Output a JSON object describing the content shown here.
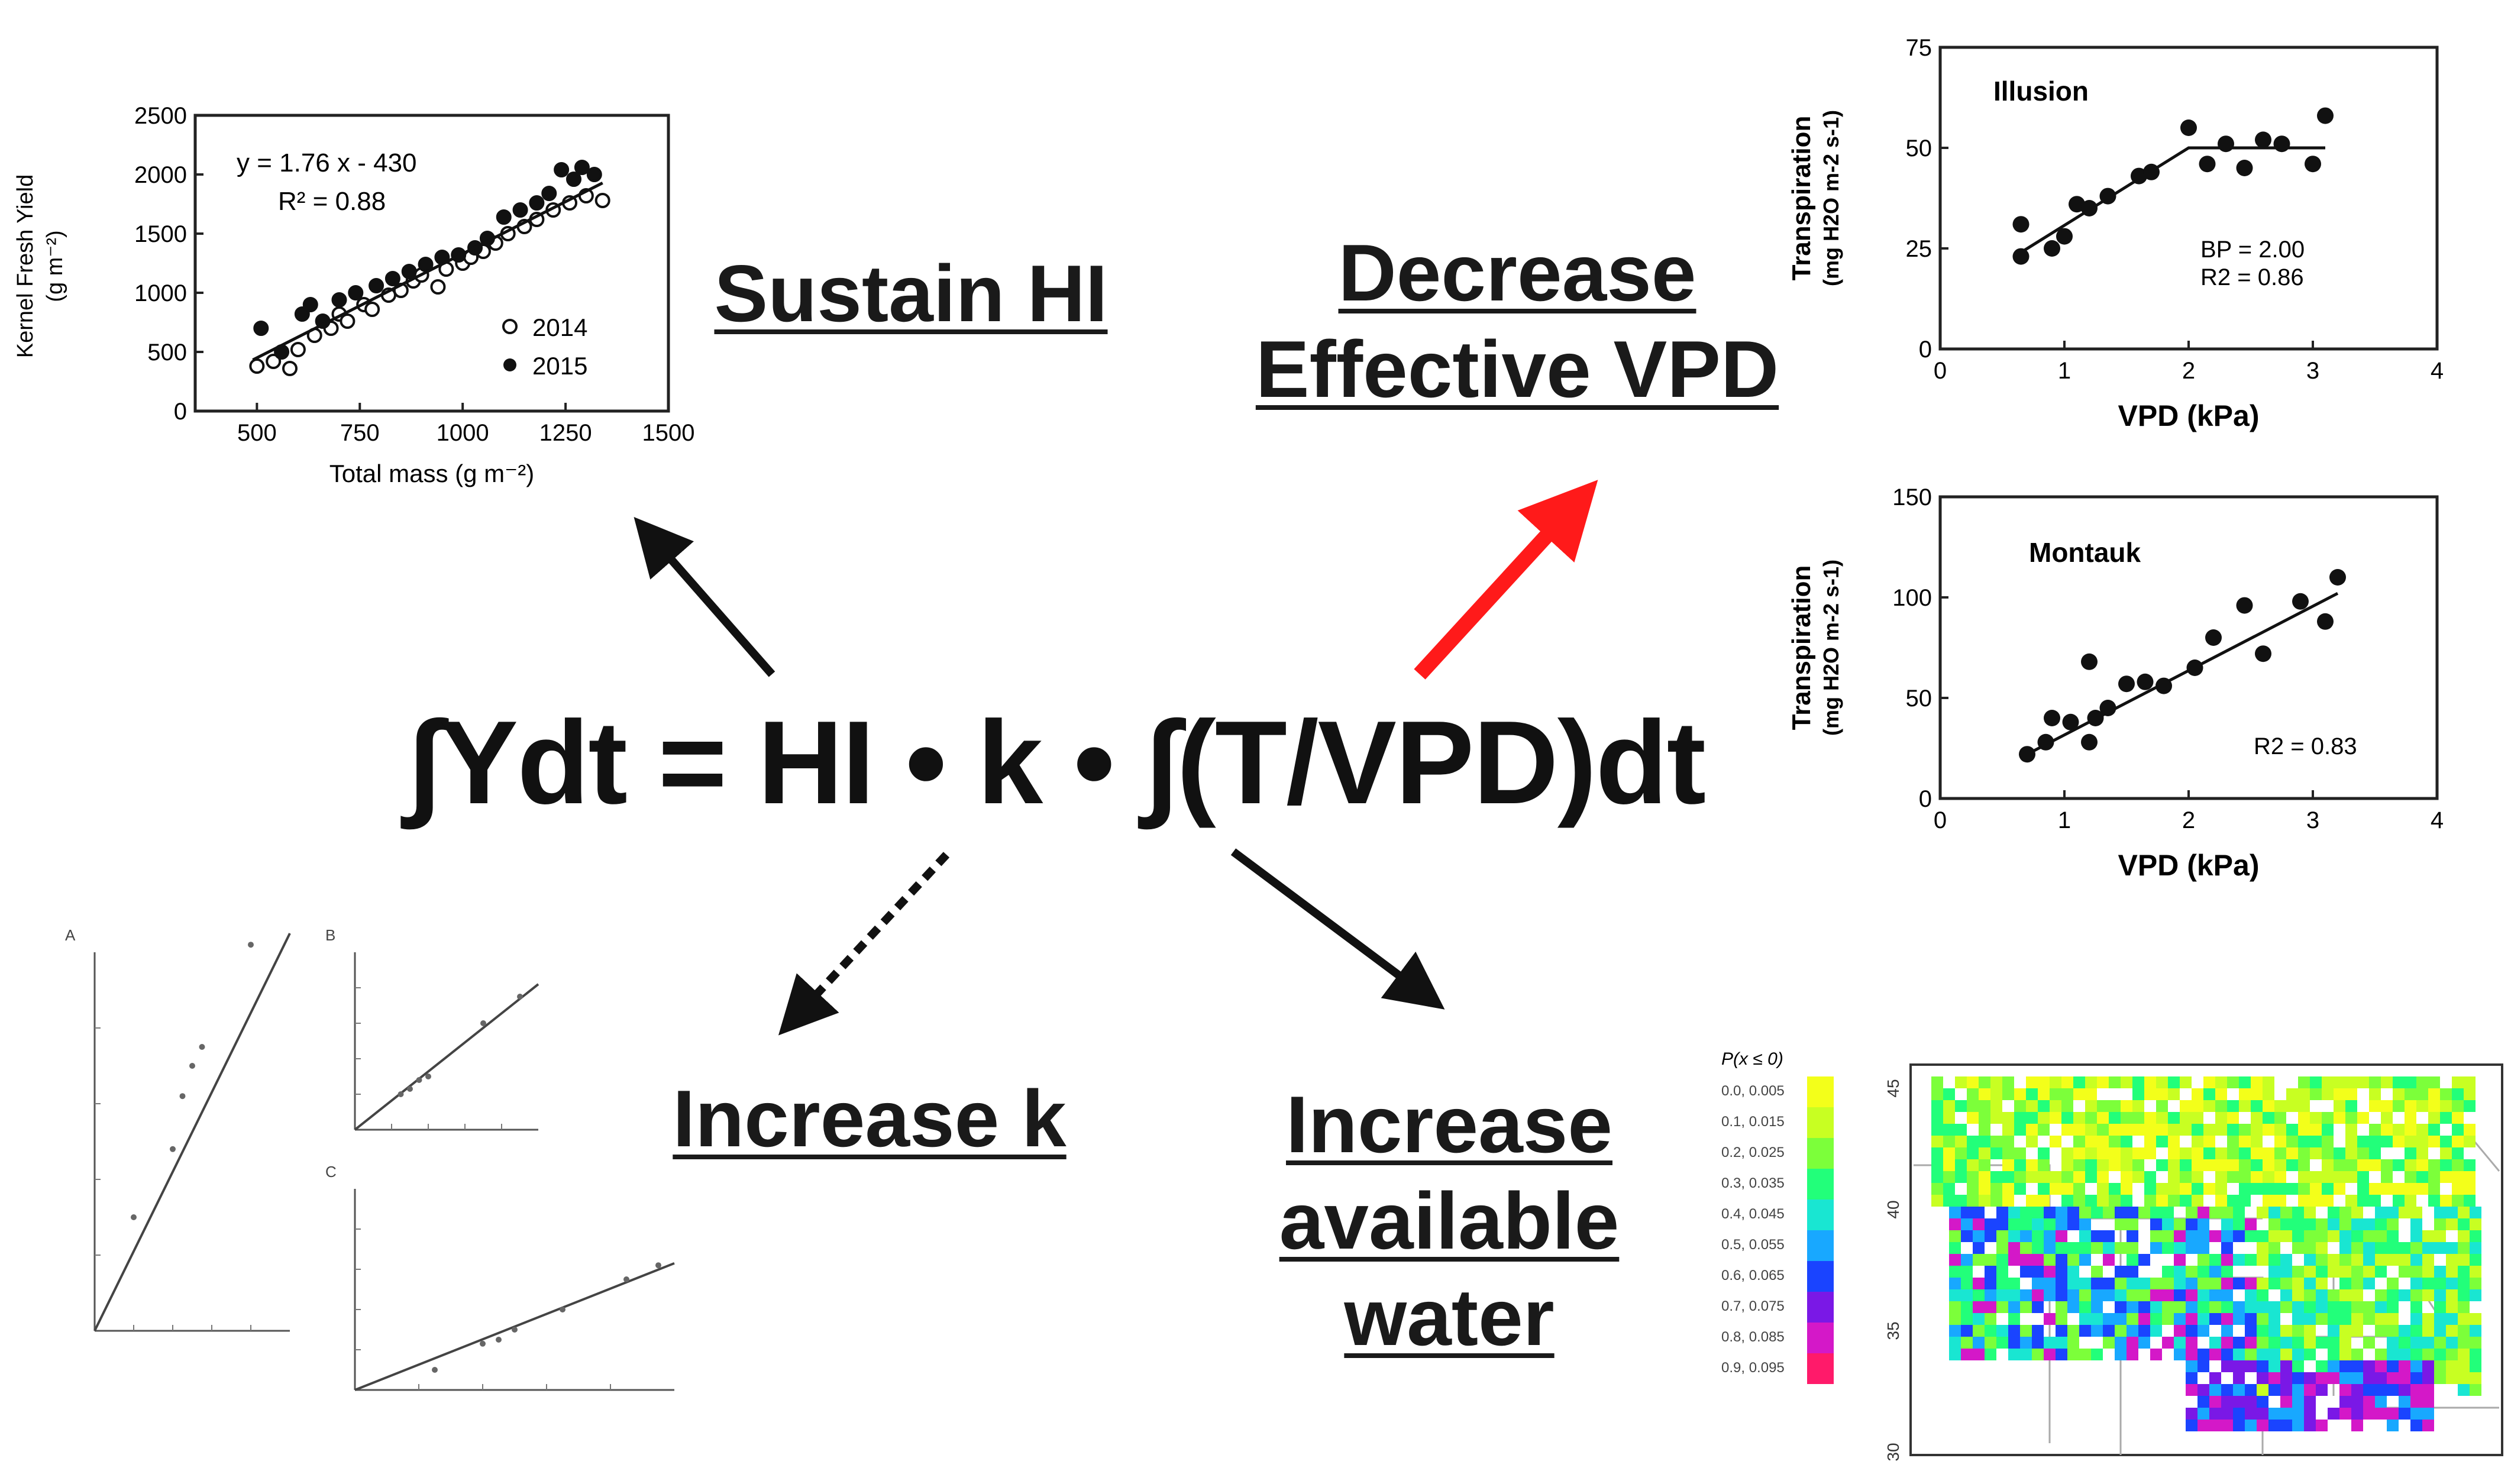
{
  "equation": "∫Ydt = HI • k • ∫(T/VPD)dt",
  "labels": {
    "sustain_hi": "Sustain HI",
    "decrease_vpd_line1": "Decrease",
    "decrease_vpd_line2": "Effective VPD",
    "increase_k": "Increase k",
    "increase_water_line1": "Increase",
    "increase_water_line2": "available",
    "increase_water_line3": "water"
  },
  "colors": {
    "arrow_black": "#111111",
    "arrow_red": "#ff1a1a"
  },
  "chart_data": [
    {
      "id": "kernel",
      "type": "scatter",
      "xlabel": "Total mass (g m⁻²)",
      "ylabel": "Kernel Fresh Yield",
      "ylabel_units": "(g m⁻²)",
      "xlim": [
        350,
        1500
      ],
      "ylim": [
        0,
        2500
      ],
      "xticks": [
        500,
        750,
        1000,
        1250,
        1500
      ],
      "yticks": [
        0,
        500,
        1000,
        1500,
        2000,
        2500
      ],
      "annotation_line1": "y = 1.76 x - 430",
      "annotation_line2": "R² = 0.88",
      "fit": {
        "slope": 1.76,
        "intercept": -430,
        "x_range": [
          490,
          1340
        ]
      },
      "legend": [
        "2014",
        "2015"
      ],
      "series": [
        {
          "name": "2014",
          "marker": "open",
          "points": [
            [
              500,
              380
            ],
            [
              540,
              420
            ],
            [
              580,
              360
            ],
            [
              600,
              520
            ],
            [
              640,
              640
            ],
            [
              680,
              700
            ],
            [
              700,
              820
            ],
            [
              720,
              760
            ],
            [
              760,
              900
            ],
            [
              780,
              860
            ],
            [
              820,
              980
            ],
            [
              850,
              1020
            ],
            [
              880,
              1100
            ],
            [
              900,
              1150
            ],
            [
              940,
              1050
            ],
            [
              960,
              1200
            ],
            [
              1000,
              1250
            ],
            [
              1020,
              1300
            ],
            [
              1050,
              1350
            ],
            [
              1080,
              1420
            ],
            [
              1110,
              1500
            ],
            [
              1150,
              1560
            ],
            [
              1180,
              1620
            ],
            [
              1220,
              1700
            ],
            [
              1260,
              1760
            ],
            [
              1300,
              1820
            ],
            [
              1340,
              1780
            ]
          ]
        },
        {
          "name": "2015",
          "marker": "filled",
          "points": [
            [
              510,
              700
            ],
            [
              560,
              500
            ],
            [
              610,
              820
            ],
            [
              630,
              900
            ],
            [
              660,
              760
            ],
            [
              700,
              940
            ],
            [
              740,
              1000
            ],
            [
              790,
              1060
            ],
            [
              830,
              1120
            ],
            [
              870,
              1180
            ],
            [
              910,
              1240
            ],
            [
              950,
              1300
            ],
            [
              990,
              1320
            ],
            [
              1030,
              1380
            ],
            [
              1060,
              1460
            ],
            [
              1100,
              1640
            ],
            [
              1140,
              1700
            ],
            [
              1180,
              1760
            ],
            [
              1210,
              1840
            ],
            [
              1240,
              2040
            ],
            [
              1270,
              1960
            ],
            [
              1290,
              2060
            ],
            [
              1320,
              2000
            ]
          ]
        }
      ]
    },
    {
      "id": "illusion",
      "type": "scatter",
      "title": "Illusion",
      "xlabel": "VPD (kPa)",
      "ylabel": "Transpiration",
      "ylabel_units": "(mg H2O m-2 s-1)",
      "xlim": [
        0,
        4
      ],
      "ylim": [
        0,
        75
      ],
      "xticks": [
        0,
        1,
        2,
        3,
        4
      ],
      "yticks": [
        0,
        25,
        50,
        75
      ],
      "annotation_line1": "BP = 2.00",
      "annotation_line2": "R2 = 0.86",
      "fit": [
        [
          0.65,
          24
        ],
        [
          2.0,
          50
        ],
        [
          3.1,
          50
        ]
      ],
      "points": [
        [
          0.65,
          31
        ],
        [
          0.65,
          23
        ],
        [
          0.9,
          25
        ],
        [
          1.0,
          28
        ],
        [
          1.1,
          36
        ],
        [
          1.2,
          35
        ],
        [
          1.35,
          38
        ],
        [
          1.6,
          43
        ],
        [
          1.7,
          44
        ],
        [
          2.0,
          55
        ],
        [
          2.15,
          46
        ],
        [
          2.3,
          51
        ],
        [
          2.45,
          45
        ],
        [
          2.6,
          52
        ],
        [
          2.75,
          51
        ],
        [
          3.0,
          46
        ],
        [
          3.1,
          58
        ]
      ]
    },
    {
      "id": "montauk",
      "type": "scatter",
      "title": "Montauk",
      "xlabel": "VPD (kPa)",
      "ylabel": "Transpiration",
      "ylabel_units": "(mg H2O m-2 s-1)",
      "xlim": [
        0,
        4
      ],
      "ylim": [
        0,
        150
      ],
      "xticks": [
        0,
        1,
        2,
        3,
        4
      ],
      "yticks": [
        0,
        50,
        100,
        150
      ],
      "annotation_line1": "R2 = 0.83",
      "fit": [
        [
          0.7,
          22
        ],
        [
          3.2,
          102
        ]
      ],
      "points": [
        [
          0.7,
          22
        ],
        [
          0.85,
          28
        ],
        [
          0.9,
          40
        ],
        [
          1.05,
          38
        ],
        [
          1.2,
          68
        ],
        [
          1.2,
          28
        ],
        [
          1.25,
          40
        ],
        [
          1.35,
          45
        ],
        [
          1.5,
          57
        ],
        [
          1.65,
          58
        ],
        [
          1.8,
          56
        ],
        [
          2.05,
          65
        ],
        [
          2.2,
          80
        ],
        [
          2.45,
          96
        ],
        [
          2.6,
          72
        ],
        [
          2.9,
          98
        ],
        [
          3.1,
          88
        ],
        [
          3.2,
          110
        ]
      ]
    },
    {
      "id": "kpanels",
      "type": "scatter",
      "panels": [
        {
          "label": "A",
          "points": [
            [
              0.2,
              0.3
            ],
            [
              0.4,
              0.48
            ],
            [
              0.45,
              0.62
            ],
            [
              0.5,
              0.7
            ],
            [
              0.55,
              0.75
            ],
            [
              0.8,
              1.02
            ]
          ],
          "fit": [
            [
              0,
              0
            ],
            [
              1,
              1.05
            ]
          ]
        },
        {
          "label": "B",
          "points": [
            [
              0.25,
              0.2
            ],
            [
              0.3,
              0.23
            ],
            [
              0.35,
              0.28
            ],
            [
              0.4,
              0.3
            ],
            [
              0.7,
              0.6
            ],
            [
              0.9,
              0.75
            ]
          ],
          "fit": [
            [
              0,
              0
            ],
            [
              1,
              0.82
            ]
          ]
        },
        {
          "label": "C",
          "points": [
            [
              0.25,
              0.1
            ],
            [
              0.4,
              0.23
            ],
            [
              0.45,
              0.25
            ],
            [
              0.5,
              0.3
            ],
            [
              0.65,
              0.4
            ],
            [
              0.85,
              0.55
            ],
            [
              0.95,
              0.62
            ]
          ],
          "fit": [
            [
              0,
              0
            ],
            [
              1,
              0.63
            ]
          ]
        }
      ]
    },
    {
      "id": "map",
      "type": "heatmap",
      "legend_title": "P(x ≤ 0)",
      "legend_entries": [
        "0.0, 0.005",
        "0.1, 0.015",
        "0.2, 0.025",
        "0.3, 0.035",
        "0.4, 0.045",
        "0.5, 0.055",
        "0.6, 0.065",
        "0.7, 0.075",
        "0.8, 0.085",
        "0.9, 0.095"
      ],
      "legend_colors": [
        "#f3ff1a",
        "#c8ff22",
        "#7cff3a",
        "#22ff7a",
        "#19e6d2",
        "#18a8ff",
        "#1a44ff",
        "#7a18e6",
        "#d418c8",
        "#ff1a6a"
      ],
      "y_ticks": [
        "45",
        "40",
        "35",
        "30"
      ]
    }
  ]
}
